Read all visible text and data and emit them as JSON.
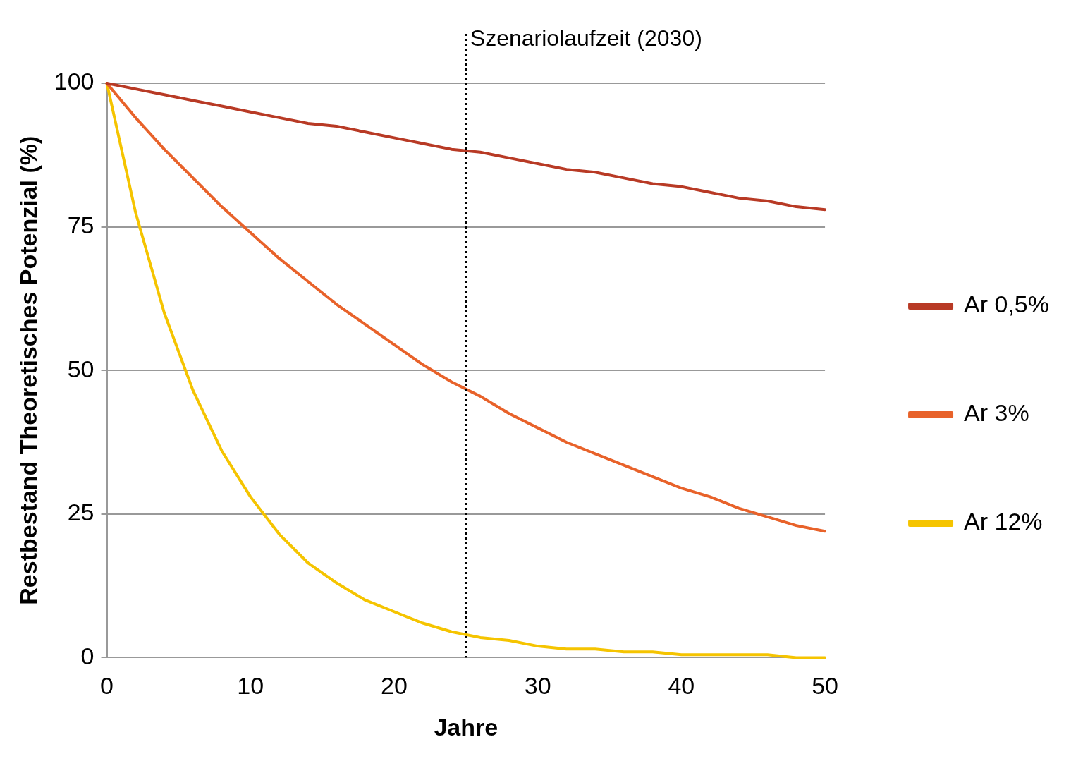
{
  "chart_data": {
    "type": "line",
    "xlabel": "Jahre",
    "ylabel": "Restbestand Theoretisches Potenzial (%)",
    "x": [
      0,
      2,
      4,
      6,
      8,
      10,
      12,
      14,
      16,
      18,
      20,
      22,
      24,
      26,
      28,
      30,
      32,
      34,
      36,
      38,
      40,
      42,
      44,
      46,
      48,
      50
    ],
    "xlim": [
      0,
      50
    ],
    "xticks": [
      0,
      10,
      20,
      30,
      40,
      50
    ],
    "ylim": [
      0,
      100
    ],
    "yticks": [
      0,
      25,
      50,
      75,
      100
    ],
    "grid": "y",
    "legend": "right",
    "marker": "none",
    "line_style": "solid",
    "series": [
      {
        "name": "Ar 0,5%",
        "color": "#b83a25",
        "values": [
          100,
          99,
          98,
          97,
          96,
          95,
          94,
          93,
          92.5,
          91.5,
          90.5,
          89.5,
          88.5,
          88,
          87,
          86,
          85,
          84.5,
          83.5,
          82.5,
          82,
          81,
          80,
          79.5,
          78.5,
          78
        ]
      },
      {
        "name": "Ar 3%",
        "color": "#e8622a",
        "values": [
          100,
          94,
          88.5,
          83.5,
          78.5,
          74,
          69.5,
          65.5,
          61.5,
          58,
          54.5,
          51,
          48,
          45.5,
          42.5,
          40,
          37.5,
          35.5,
          33.5,
          31.5,
          29.5,
          28,
          26,
          24.5,
          23,
          22
        ]
      },
      {
        "name": "Ar 12%",
        "color": "#f5c400",
        "values": [
          100,
          77.5,
          60,
          46.5,
          36,
          28,
          21.5,
          16.5,
          13,
          10,
          8,
          6,
          4.5,
          3.5,
          3,
          2,
          1.5,
          1.5,
          1,
          1,
          0.5,
          0.5,
          0.5,
          0.5,
          0,
          0
        ]
      }
    ],
    "ref_lines": [
      {
        "axis": "x",
        "value": 25,
        "label": "Szenariolaufzeit (2030)",
        "color": "#000000",
        "line_style": "dotted"
      }
    ]
  }
}
